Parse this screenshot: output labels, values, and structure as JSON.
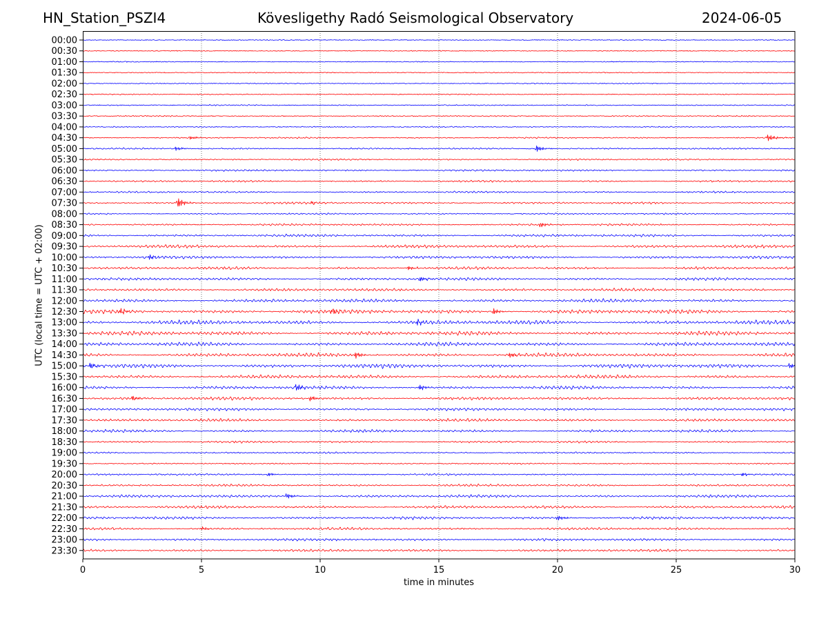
{
  "header": {
    "station": "HN_Station_PSZI4",
    "observatory": "Kövesligethy Radó Seismological Observatory",
    "date": "2024-06-05"
  },
  "chart_data": {
    "type": "line",
    "title": "Kövesligethy Radó Seismological Observatory",
    "xlabel": "time in minutes",
    "ylabel": "UTC (local time = UTC + 02:00)",
    "xlim": [
      0,
      30
    ],
    "xticks": [
      "0",
      "5",
      "10",
      "15",
      "20",
      "25",
      "30"
    ],
    "grid": "vertical dotted at x ticks",
    "row_labels": [
      "00:00",
      "00:30",
      "01:00",
      "01:30",
      "02:00",
      "02:30",
      "03:00",
      "03:30",
      "04:00",
      "04:30",
      "05:00",
      "05:30",
      "06:00",
      "06:30",
      "07:00",
      "07:30",
      "08:00",
      "08:30",
      "09:00",
      "09:30",
      "10:00",
      "10:30",
      "11:00",
      "11:30",
      "12:00",
      "12:30",
      "13:00",
      "13:30",
      "14:00",
      "14:30",
      "15:00",
      "15:30",
      "16:00",
      "16:30",
      "17:00",
      "17:30",
      "18:00",
      "18:30",
      "19:00",
      "19:30",
      "20:00",
      "20:30",
      "21:00",
      "21:30",
      "22:00",
      "22:30",
      "23:00",
      "23:30"
    ],
    "series_colors": [
      "#0000ff",
      "#ff0000"
    ],
    "activity_level": [
      0.15,
      0.15,
      0.2,
      0.2,
      0.2,
      0.25,
      0.3,
      0.3,
      0.3,
      0.4,
      0.5,
      0.5,
      0.6,
      0.6,
      0.6,
      0.7,
      0.5,
      0.7,
      0.9,
      1.1,
      1.0,
      1.0,
      1.0,
      1.0,
      1.2,
      1.5,
      1.5,
      1.5,
      1.4,
      1.4,
      1.5,
      1.3,
      1.2,
      1.1,
      1.0,
      1.0,
      1.0,
      0.7,
      0.5,
      0.4,
      0.6,
      0.8,
      1.0,
      1.0,
      1.0,
      0.9,
      0.9,
      0.9
    ],
    "events": [
      {
        "row": 9,
        "minute": 4.5,
        "amp": 2.2
      },
      {
        "row": 9,
        "minute": 28.9,
        "amp": 4
      },
      {
        "row": 10,
        "minute": 3.9,
        "amp": 2.5
      },
      {
        "row": 10,
        "minute": 19.1,
        "amp": 4
      },
      {
        "row": 15,
        "minute": 4.0,
        "amp": 6
      },
      {
        "row": 15,
        "minute": 9.6,
        "amp": 2
      },
      {
        "row": 17,
        "minute": 19.3,
        "amp": 3
      },
      {
        "row": 20,
        "minute": 2.8,
        "amp": 3
      },
      {
        "row": 21,
        "minute": 13.7,
        "amp": 2.5
      },
      {
        "row": 22,
        "minute": 14.2,
        "amp": 3
      },
      {
        "row": 25,
        "minute": 1.6,
        "amp": 3.5
      },
      {
        "row": 25,
        "minute": 10.5,
        "amp": 3.5
      },
      {
        "row": 25,
        "minute": 17.3,
        "amp": 3.5
      },
      {
        "row": 26,
        "minute": 14.1,
        "amp": 3
      },
      {
        "row": 29,
        "minute": 11.5,
        "amp": 3.5
      },
      {
        "row": 29,
        "minute": 18.0,
        "amp": 3
      },
      {
        "row": 30,
        "minute": 0.3,
        "amp": 3.5
      },
      {
        "row": 30,
        "minute": 29.8,
        "amp": 3
      },
      {
        "row": 32,
        "minute": 9.0,
        "amp": 4
      },
      {
        "row": 32,
        "minute": 14.2,
        "amp": 3
      },
      {
        "row": 33,
        "minute": 2.1,
        "amp": 2.5
      },
      {
        "row": 33,
        "minute": 9.6,
        "amp": 3
      },
      {
        "row": 40,
        "minute": 7.8,
        "amp": 2.5
      },
      {
        "row": 40,
        "minute": 27.8,
        "amp": 2
      },
      {
        "row": 42,
        "minute": 8.6,
        "amp": 3
      },
      {
        "row": 44,
        "minute": 20.0,
        "amp": 3
      },
      {
        "row": 45,
        "minute": 5.0,
        "amp": 2
      }
    ]
  }
}
